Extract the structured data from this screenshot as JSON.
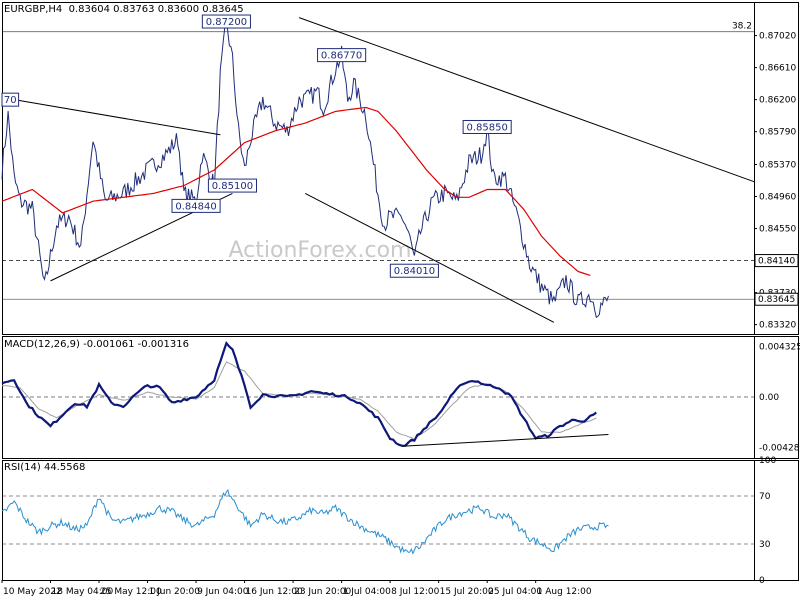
{
  "header": {
    "main": "EURGBP,H4  0.83604 0.83763 0.83600 0.83645",
    "macd": "MACD(12,26,9) -0.001061 -0.001316",
    "rsi": "RSI(14) 44.5568"
  },
  "watermark": "ActionForex.com",
  "colors": {
    "price": "#1f2d7a",
    "ma": "#e00000",
    "macd": "#0d1878",
    "signal": "#a0a0a0",
    "rsi": "#2a8fd0",
    "trend": "#000000",
    "grid_dash": "#000000"
  },
  "chart_data": [
    {
      "type": "line",
      "panel": "price",
      "ylim": [
        0.832,
        0.8745
      ],
      "y_ticks": [
        "0.87020",
        "0.86610",
        "0.86200",
        "0.85790",
        "0.85370",
        "0.84960",
        "0.84550",
        "0.84140",
        "0.83730",
        "0.83320"
      ],
      "y_tick_values": [
        0.8702,
        0.8661,
        0.862,
        0.8579,
        0.8537,
        0.8496,
        0.8455,
        0.8414,
        0.8373,
        0.8332
      ],
      "x_range": [
        0,
        124
      ],
      "x_ticks": [
        {
          "label": "10 May 2022",
          "x": 0
        },
        {
          "label": "18 May 04:00",
          "x": 8
        },
        {
          "label": "25 May 12:00",
          "x": 16
        },
        {
          "label": "1 Jun 20:00",
          "x": 24
        },
        {
          "label": "9 Jun 04:00",
          "x": 32
        },
        {
          "label": "16 Jun 12:00",
          "x": 40
        },
        {
          "label": "23 Jun 20:00",
          "x": 48
        },
        {
          "label": "1 Jul 04:00",
          "x": 56
        },
        {
          "label": "8 Jul 12:00",
          "x": 64
        },
        {
          "label": "15 Jul 20:00",
          "x": 72
        },
        {
          "label": "25 Jul 04:00",
          "x": 80
        },
        {
          "label": "1 Aug 12:00",
          "x": 88
        }
      ],
      "price_anchors": [
        [
          0,
          0.853
        ],
        [
          1,
          0.86
        ],
        [
          2,
          0.852
        ],
        [
          3,
          0.849
        ],
        [
          5,
          0.848
        ],
        [
          7,
          0.838
        ],
        [
          9,
          0.846
        ],
        [
          11,
          0.847
        ],
        [
          13,
          0.843
        ],
        [
          15,
          0.857
        ],
        [
          17,
          0.849
        ],
        [
          20,
          0.85
        ],
        [
          24,
          0.853
        ],
        [
          27,
          0.855
        ],
        [
          29,
          0.857
        ],
        [
          30,
          0.85
        ],
        [
          32,
          0.849
        ],
        [
          33,
          0.855
        ],
        [
          35,
          0.851
        ],
        [
          36,
          0.865
        ],
        [
          37,
          0.872
        ],
        [
          38,
          0.867
        ],
        [
          39,
          0.858
        ],
        [
          40,
          0.853
        ],
        [
          41,
          0.857
        ],
        [
          43,
          0.862
        ],
        [
          45,
          0.859
        ],
        [
          47,
          0.858
        ],
        [
          49,
          0.862
        ],
        [
          50,
          0.862
        ],
        [
          52,
          0.863
        ],
        [
          53,
          0.861
        ],
        [
          55,
          0.866
        ],
        [
          56,
          0.8677
        ],
        [
          57,
          0.862
        ],
        [
          58,
          0.864
        ],
        [
          60,
          0.86
        ],
        [
          61,
          0.855
        ],
        [
          62,
          0.85
        ],
        [
          63,
          0.846
        ],
        [
          64,
          0.847
        ],
        [
          66,
          0.847
        ],
        [
          67,
          0.845
        ],
        [
          68,
          0.8415
        ],
        [
          69,
          0.845
        ],
        [
          71,
          0.849
        ],
        [
          73,
          0.85
        ],
        [
          75,
          0.849
        ],
        [
          77,
          0.854
        ],
        [
          79,
          0.855
        ],
        [
          80,
          0.858
        ],
        [
          81,
          0.852
        ],
        [
          83,
          0.852
        ],
        [
          85,
          0.847
        ],
        [
          87,
          0.841
        ],
        [
          89,
          0.838
        ],
        [
          91,
          0.836
        ],
        [
          93,
          0.839
        ],
        [
          95,
          0.836
        ],
        [
          97,
          0.837
        ],
        [
          98,
          0.8352
        ],
        [
          100,
          0.8364
        ]
      ],
      "x_max_price": 100,
      "ma_anchors": [
        [
          0,
          0.849
        ],
        [
          5,
          0.8505
        ],
        [
          10,
          0.8475
        ],
        [
          15,
          0.849
        ],
        [
          20,
          0.8495
        ],
        [
          25,
          0.85
        ],
        [
          30,
          0.851
        ],
        [
          35,
          0.853
        ],
        [
          40,
          0.8565
        ],
        [
          45,
          0.858
        ],
        [
          50,
          0.859
        ],
        [
          55,
          0.8605
        ],
        [
          60,
          0.861
        ],
        [
          62,
          0.8605
        ],
        [
          65,
          0.858
        ],
        [
          67,
          0.856
        ],
        [
          70,
          0.853
        ],
        [
          73,
          0.8505
        ],
        [
          75,
          0.8495
        ],
        [
          77,
          0.8495
        ],
        [
          80,
          0.8505
        ],
        [
          83,
          0.8505
        ],
        [
          86,
          0.848
        ],
        [
          89,
          0.8445
        ],
        [
          92,
          0.842
        ],
        [
          95,
          0.84
        ],
        [
          97,
          0.8395
        ]
      ],
      "levels": [
        {
          "name": "fib-382",
          "value": 0.8707,
          "label": "38.2",
          "style": "solid"
        },
        {
          "name": "support-84140",
          "value": 0.8414,
          "label": "0.84140",
          "style": "dashed"
        },
        {
          "name": "current-83645",
          "value": 0.83645,
          "label": "0.83645",
          "style": "solid"
        }
      ],
      "annotations": [
        {
          "text": "0.87200",
          "x": 37,
          "y": 0.872
        },
        {
          "text": "0.86770",
          "x": 56,
          "y": 0.8677
        },
        {
          "text": "0.85850",
          "x": 80,
          "y": 0.8585
        },
        {
          "text": "0.85100",
          "x": 38,
          "y": 0.851
        },
        {
          "text": "0.84840",
          "x": 32,
          "y": 0.8484
        },
        {
          "text": "0.84010",
          "x": 68,
          "y": 0.8401
        },
        {
          "text": "70",
          "x": 0,
          "y": 0.862
        }
      ],
      "trendlines": [
        {
          "name": "upper-triangle",
          "x1": 2,
          "y1": 0.862,
          "x2": 36,
          "y2": 0.8575
        },
        {
          "name": "lower-triangle",
          "x1": 8,
          "y1": 0.8388,
          "x2": 38,
          "y2": 0.85
        },
        {
          "name": "channel-top",
          "x1": 49,
          "y1": 0.8725,
          "x2": 124,
          "y2": 0.8515
        },
        {
          "name": "channel-bottom",
          "x1": 50,
          "y1": 0.85,
          "x2": 91,
          "y2": 0.8335
        }
      ]
    },
    {
      "type": "line",
      "panel": "macd",
      "ylim": [
        -0.0052,
        0.0052
      ],
      "y_ticks": [
        "0.004325",
        "0.00",
        "-0.004288"
      ],
      "y_tick_values": [
        0.004325,
        0.0,
        -0.004288
      ],
      "series": [
        {
          "name": "MACD",
          "anchors": [
            [
              0,
              0.0012
            ],
            [
              2,
              0.0015
            ],
            [
              4,
              -0.0005
            ],
            [
              6,
              -0.0016
            ],
            [
              8,
              -0.0025
            ],
            [
              10,
              -0.0015
            ],
            [
              12,
              -0.0005
            ],
            [
              14,
              -0.0008
            ],
            [
              16,
              0.001
            ],
            [
              18,
              -0.0005
            ],
            [
              20,
              -0.0008
            ],
            [
              22,
              0.0002
            ],
            [
              24,
              0.001
            ],
            [
              26,
              0.0008
            ],
            [
              28,
              -0.0005
            ],
            [
              30,
              -0.0002
            ],
            [
              32,
              0.0
            ],
            [
              35,
              0.0015
            ],
            [
              37,
              0.0045
            ],
            [
              38,
              0.004
            ],
            [
              40,
              0.001
            ],
            [
              41,
              -0.0008
            ],
            [
              43,
              0.0002
            ],
            [
              45,
              0.0001
            ],
            [
              47,
              0.0
            ],
            [
              49,
              0.0002
            ],
            [
              51,
              0.0005
            ],
            [
              53,
              0.0003
            ],
            [
              55,
              0.0002
            ],
            [
              57,
              0.0
            ],
            [
              59,
              -0.0005
            ],
            [
              62,
              -0.0018
            ],
            [
              64,
              -0.0035
            ],
            [
              66,
              -0.0042
            ],
            [
              68,
              -0.0036
            ],
            [
              70,
              -0.0025
            ],
            [
              72,
              -0.0015
            ],
            [
              74,
              0.0
            ],
            [
              76,
              0.0012
            ],
            [
              78,
              0.0014
            ],
            [
              80,
              0.001
            ],
            [
              82,
              0.0008
            ],
            [
              84,
              0.0
            ],
            [
              86,
              -0.0018
            ],
            [
              88,
              -0.0035
            ],
            [
              90,
              -0.0033
            ],
            [
              92,
              -0.0025
            ],
            [
              94,
              -0.002
            ],
            [
              96,
              -0.002
            ],
            [
              98,
              -0.0014
            ]
          ]
        },
        {
          "name": "Signal",
          "anchors": [
            [
              0,
              0.001
            ],
            [
              3,
              0.0008
            ],
            [
              6,
              -0.001
            ],
            [
              9,
              -0.0018
            ],
            [
              12,
              -0.0008
            ],
            [
              16,
              0.0002
            ],
            [
              20,
              -0.0003
            ],
            [
              24,
              0.0004
            ],
            [
              28,
              0.0
            ],
            [
              32,
              -0.0002
            ],
            [
              35,
              0.0008
            ],
            [
              37,
              0.003
            ],
            [
              40,
              0.0022
            ],
            [
              43,
              0.0003
            ],
            [
              47,
              0.0001
            ],
            [
              51,
              0.0003
            ],
            [
              55,
              0.0002
            ],
            [
              59,
              -0.0002
            ],
            [
              62,
              -0.0012
            ],
            [
              65,
              -0.003
            ],
            [
              68,
              -0.0036
            ],
            [
              71,
              -0.0025
            ],
            [
              74,
              -0.0008
            ],
            [
              77,
              0.0008
            ],
            [
              80,
              0.0011
            ],
            [
              83,
              0.0005
            ],
            [
              86,
              -0.001
            ],
            [
              89,
              -0.003
            ],
            [
              92,
              -0.003
            ],
            [
              96,
              -0.0022
            ],
            [
              98,
              -0.0018
            ]
          ]
        }
      ],
      "trendline": {
        "x1": 66,
        "y1": -0.0042,
        "x2": 100,
        "y2": -0.0032
      }
    },
    {
      "type": "line",
      "panel": "rsi",
      "ylim": [
        0,
        100
      ],
      "y_ticks": [
        "100",
        "70",
        "30",
        "0"
      ],
      "y_tick_values": [
        100,
        70,
        30,
        0
      ],
      "series": [
        {
          "name": "RSI",
          "anchors": [
            [
              0,
              55
            ],
            [
              2,
              65
            ],
            [
              4,
              50
            ],
            [
              6,
              40
            ],
            [
              8,
              45
            ],
            [
              10,
              48
            ],
            [
              12,
              42
            ],
            [
              14,
              45
            ],
            [
              16,
              70
            ],
            [
              18,
              50
            ],
            [
              20,
              48
            ],
            [
              22,
              52
            ],
            [
              24,
              55
            ],
            [
              26,
              60
            ],
            [
              28,
              57
            ],
            [
              30,
              50
            ],
            [
              32,
              45
            ],
            [
              35,
              55
            ],
            [
              37,
              75
            ],
            [
              39,
              60
            ],
            [
              41,
              45
            ],
            [
              43,
              55
            ],
            [
              45,
              50
            ],
            [
              47,
              48
            ],
            [
              49,
              52
            ],
            [
              51,
              58
            ],
            [
              53,
              55
            ],
            [
              55,
              60
            ],
            [
              57,
              52
            ],
            [
              59,
              45
            ],
            [
              61,
              40
            ],
            [
              63,
              35
            ],
            [
              65,
              28
            ],
            [
              67,
              22
            ],
            [
              69,
              28
            ],
            [
              71,
              40
            ],
            [
              73,
              50
            ],
            [
              75,
              55
            ],
            [
              77,
              58
            ],
            [
              79,
              60
            ],
            [
              81,
              52
            ],
            [
              83,
              55
            ],
            [
              85,
              45
            ],
            [
              87,
              35
            ],
            [
              89,
              30
            ],
            [
              91,
              25
            ],
            [
              93,
              35
            ],
            [
              95,
              42
            ],
            [
              97,
              44
            ],
            [
              99,
              45
            ],
            [
              100,
              44.6
            ]
          ]
        }
      ],
      "dashed_levels": [
        70,
        30
      ]
    }
  ]
}
